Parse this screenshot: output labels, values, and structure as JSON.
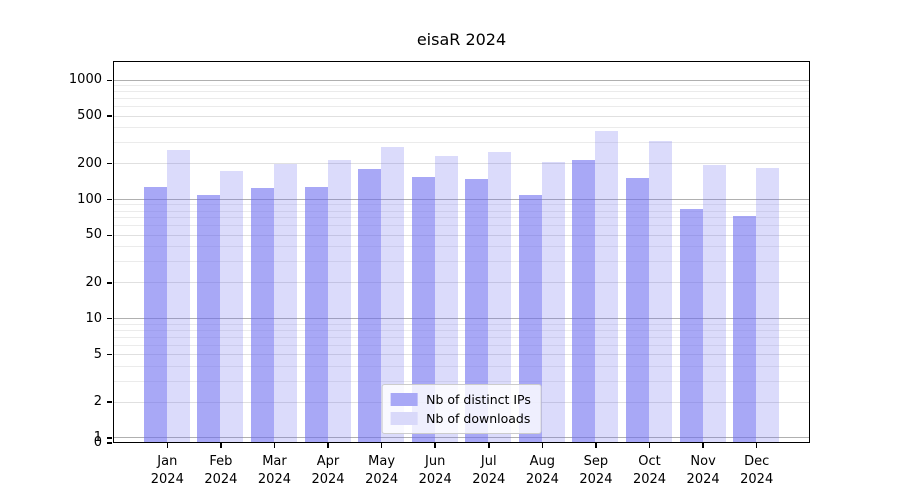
{
  "title": "eisaR 2024",
  "legend": {
    "items": [
      {
        "label": "Nb of distinct IPs"
      },
      {
        "label": "Nb of downloads"
      }
    ]
  },
  "colors": {
    "ips_fill": "rgba(105,105,240,0.58)",
    "downloads_fill": "rgba(105,105,240,0.24)",
    "ips_swatch": "#a8a8f6",
    "downloads_swatch": "#d9d9fa",
    "grid_decade": "#b0b0b0",
    "grid_labeled": "#e0e0e0",
    "grid_minor": "#ebebeb",
    "axis": "#000000"
  },
  "y_axis": {
    "tick_labels": [
      "0",
      "1",
      "2",
      "5",
      "10",
      "20",
      "50",
      "100",
      "200",
      "500",
      "1000"
    ],
    "tick_values": [
      0,
      1,
      2,
      5,
      10,
      20,
      50,
      100,
      200,
      500,
      1000
    ],
    "minor_values": [
      3,
      4,
      6,
      7,
      8,
      9,
      30,
      40,
      60,
      70,
      80,
      90,
      300,
      400,
      600,
      700,
      800,
      900
    ]
  },
  "x_axis": {
    "months": [
      "Jan",
      "Feb",
      "Mar",
      "Apr",
      "May",
      "Jun",
      "Jul",
      "Aug",
      "Sep",
      "Oct",
      "Nov",
      "Dec"
    ],
    "year": "2024"
  },
  "chart_data": {
    "type": "bar",
    "title": "eisaR 2024",
    "categories": [
      "Jan 2024",
      "Feb 2024",
      "Mar 2024",
      "Apr 2024",
      "May 2024",
      "Jun 2024",
      "Jul 2024",
      "Aug 2024",
      "Sep 2024",
      "Oct 2024",
      "Nov 2024",
      "Dec 2024"
    ],
    "series": [
      {
        "name": "Nb of distinct IPs",
        "values": [
          126,
          106,
          122,
          124,
          176,
          152,
          146,
          106,
          210,
          149,
          82,
          71
        ]
      },
      {
        "name": "Nb of downloads",
        "values": [
          257,
          170,
          196,
          209,
          269,
          227,
          245,
          202,
          368,
          304,
          191,
          180
        ]
      }
    ],
    "yscale": "symlog",
    "yticks": [
      0,
      1,
      2,
      5,
      10,
      20,
      50,
      100,
      200,
      500,
      1000
    ],
    "ylim": [
      0,
      1400
    ],
    "grid": true,
    "legend_position": "lower center"
  }
}
